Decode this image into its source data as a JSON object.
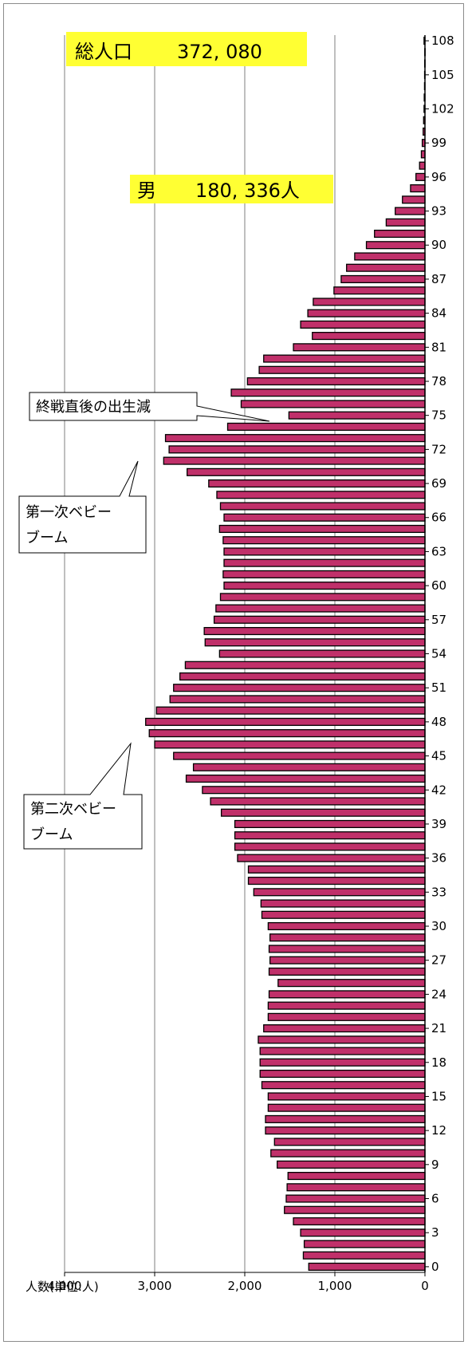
{
  "total_population": {
    "label": "総人口",
    "value": "372, 080"
  },
  "male_population": {
    "label": "男",
    "value": "180, 336人"
  },
  "annotations": {
    "postwar": "終戦直後の出生減",
    "boom1_line1": "第一次ベビー",
    "boom1_line2": "ブーム",
    "boom2_line1": "第二次ベビー",
    "boom2_line2": "ブーム"
  },
  "colors": {
    "highlight": "#ffff33",
    "bar_fill": "#c0306a",
    "bar_edge": "#000000",
    "grid": "#7f7f7f"
  },
  "chart_data": {
    "type": "bar",
    "orientation": "horizontal",
    "xlabel": "人数(単位:人)",
    "xlim": [
      0,
      4000
    ],
    "x_reversed": true,
    "x_ticks": [
      4000,
      3000,
      2000,
      1000,
      0
    ],
    "x_tick_labels": [
      "4,000",
      "3,000",
      "2,000",
      "1,000",
      "0"
    ],
    "y_tick_labels": [
      "0",
      "3",
      "6",
      "9",
      "12",
      "15",
      "18",
      "21",
      "24",
      "27",
      "30",
      "33",
      "36",
      "39",
      "42",
      "45",
      "48",
      "51",
      "54",
      "57",
      "60",
      "63",
      "66",
      "69",
      "72",
      "75",
      "78",
      "81",
      "84",
      "87",
      "90",
      "93",
      "96",
      "99",
      "102",
      "105",
      "108"
    ],
    "grid": "vertical",
    "ages": [
      0,
      1,
      2,
      3,
      4,
      5,
      6,
      7,
      8,
      9,
      10,
      11,
      12,
      13,
      14,
      15,
      16,
      17,
      18,
      19,
      20,
      21,
      22,
      23,
      24,
      25,
      26,
      27,
      28,
      29,
      30,
      31,
      32,
      33,
      34,
      35,
      36,
      37,
      38,
      39,
      40,
      41,
      42,
      43,
      44,
      45,
      46,
      47,
      48,
      49,
      50,
      51,
      52,
      53,
      54,
      55,
      56,
      57,
      58,
      59,
      60,
      61,
      62,
      63,
      64,
      65,
      66,
      67,
      68,
      69,
      70,
      71,
      72,
      73,
      74,
      75,
      76,
      77,
      78,
      79,
      80,
      81,
      82,
      83,
      84,
      85,
      86,
      87,
      88,
      89,
      90,
      91,
      92,
      93,
      94,
      95,
      96,
      97,
      98,
      99,
      100,
      101,
      102,
      103,
      104,
      105,
      106,
      107,
      108
    ],
    "values": [
      1290,
      1350,
      1340,
      1380,
      1460,
      1560,
      1540,
      1530,
      1520,
      1640,
      1710,
      1670,
      1770,
      1770,
      1740,
      1740,
      1810,
      1830,
      1830,
      1830,
      1850,
      1790,
      1740,
      1740,
      1730,
      1630,
      1730,
      1720,
      1730,
      1720,
      1740,
      1810,
      1820,
      1900,
      1960,
      1960,
      2080,
      2110,
      2110,
      2110,
      2260,
      2380,
      2470,
      2650,
      2570,
      2790,
      3000,
      3060,
      3100,
      2980,
      2830,
      2790,
      2720,
      2660,
      2280,
      2440,
      2450,
      2340,
      2320,
      2270,
      2230,
      2240,
      2230,
      2230,
      2240,
      2280,
      2230,
      2270,
      2310,
      2400,
      2640,
      2900,
      2840,
      2880,
      2190,
      1510,
      2040,
      2150,
      1970,
      1840,
      1790,
      1460,
      1250,
      1380,
      1300,
      1240,
      1010,
      930,
      870,
      780,
      650,
      560,
      430,
      330,
      250,
      160,
      100,
      60,
      40,
      30,
      20,
      15,
      10,
      8,
      5,
      4,
      3,
      2,
      10
    ]
  }
}
